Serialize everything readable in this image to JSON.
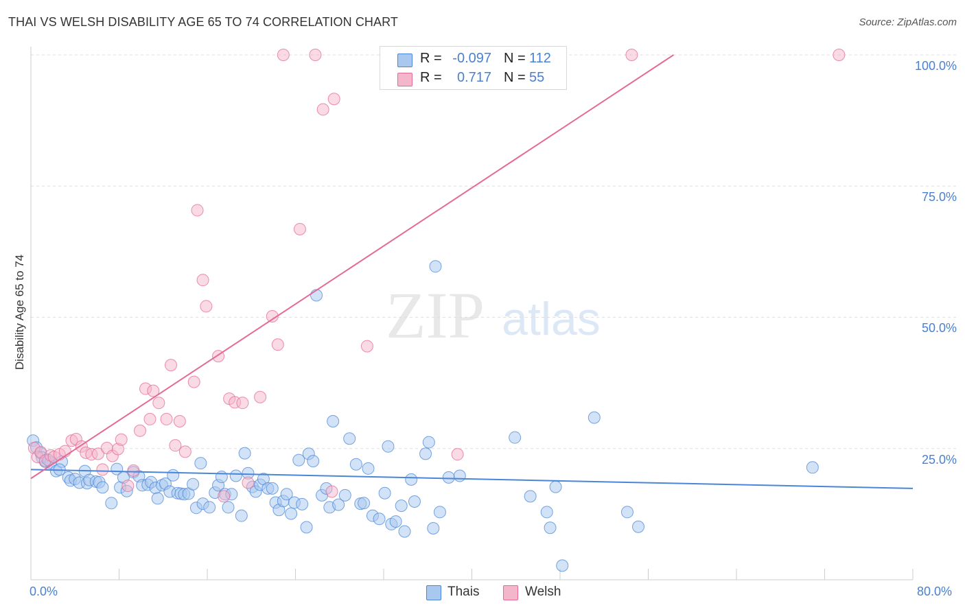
{
  "title": "THAI VS WELSH DISABILITY AGE 65 TO 74 CORRELATION CHART",
  "source": "Source: ZipAtlas.com",
  "watermark": {
    "zip": "ZIP",
    "atlas": "atlas"
  },
  "colors": {
    "thai": "#4a86d8",
    "thai_fill": "#a8c8f0",
    "welsh": "#e46a95",
    "welsh_fill": "#f4b6cb",
    "tick_text": "#4a80d0",
    "grid": "#dddddd"
  },
  "legend": {
    "thai": {
      "r_label": "R =",
      "r_value": "-0.097",
      "n_label": "N =",
      "n_value": "112"
    },
    "welsh": {
      "r_label": "R =",
      "r_value": "0.717",
      "n_label": "N =",
      "n_value": "55"
    }
  },
  "chart_data": {
    "type": "scatter",
    "title": "THAI VS WELSH DISABILITY AGE 65 TO 74 CORRELATION CHART",
    "xlabel": "",
    "ylabel": "Disability Age 65 to 74",
    "xlim": [
      0,
      80
    ],
    "ylim": [
      0,
      100
    ],
    "x_tick_labels": [
      "0.0%",
      "80.0%"
    ],
    "y_tick_labels": [
      "25.0%",
      "50.0%",
      "75.0%",
      "100.0%"
    ],
    "y_ticks": [
      25,
      50,
      75,
      100
    ],
    "grid": "horizontal dashed",
    "legend_position": "top-center",
    "series": [
      {
        "name": "Thais",
        "r": -0.097,
        "n": 112,
        "trend": {
          "x": [
            0,
            80
          ],
          "y": [
            21.0,
            17.4
          ]
        },
        "points": [
          [
            0.2,
            26.5
          ],
          [
            0.5,
            25.2
          ],
          [
            0.9,
            24.1
          ],
          [
            1.0,
            23.3
          ],
          [
            1.3,
            22.5
          ],
          [
            1.5,
            22.9
          ],
          [
            1.8,
            22.3
          ],
          [
            2.3,
            20.7
          ],
          [
            2.8,
            22.5
          ],
          [
            3.4,
            19.5
          ],
          [
            3.6,
            18.9
          ],
          [
            4.0,
            19.2
          ],
          [
            4.4,
            18.5
          ],
          [
            4.9,
            20.7
          ],
          [
            5.1,
            18.4
          ],
          [
            5.3,
            19.0
          ],
          [
            5.9,
            18.7
          ],
          [
            6.2,
            18.6
          ],
          [
            6.5,
            17.6
          ],
          [
            7.3,
            14.6
          ],
          [
            7.8,
            21.1
          ],
          [
            8.1,
            17.6
          ],
          [
            8.4,
            19.5
          ],
          [
            8.7,
            16.9
          ],
          [
            9.3,
            20.5
          ],
          [
            9.8,
            19.7
          ],
          [
            10.1,
            18.0
          ],
          [
            10.6,
            18.1
          ],
          [
            10.9,
            18.6
          ],
          [
            11.3,
            17.5
          ],
          [
            11.5,
            15.5
          ],
          [
            11.9,
            18.0
          ],
          [
            12.2,
            18.3
          ],
          [
            12.6,
            16.8
          ],
          [
            12.9,
            19.9
          ],
          [
            13.3,
            16.5
          ],
          [
            13.6,
            16.4
          ],
          [
            13.9,
            16.3
          ],
          [
            14.3,
            16.4
          ],
          [
            14.7,
            18.2
          ],
          [
            15.0,
            13.7
          ],
          [
            15.4,
            22.2
          ],
          [
            15.6,
            14.5
          ],
          [
            16.2,
            13.8
          ],
          [
            16.7,
            16.6
          ],
          [
            17.0,
            18.0
          ],
          [
            17.3,
            19.6
          ],
          [
            17.6,
            16.3
          ],
          [
            17.9,
            13.8
          ],
          [
            18.2,
            16.3
          ],
          [
            18.6,
            19.8
          ],
          [
            19.1,
            12.2
          ],
          [
            19.4,
            24.1
          ],
          [
            19.7,
            20.3
          ],
          [
            20.1,
            17.7
          ],
          [
            20.4,
            16.8
          ],
          [
            20.8,
            18.1
          ],
          [
            21.1,
            19.2
          ],
          [
            21.5,
            17.4
          ],
          [
            21.9,
            17.4
          ],
          [
            22.2,
            14.7
          ],
          [
            22.5,
            13.3
          ],
          [
            22.9,
            15.0
          ],
          [
            23.2,
            16.3
          ],
          [
            23.6,
            12.6
          ],
          [
            23.9,
            14.7
          ],
          [
            24.3,
            22.8
          ],
          [
            24.6,
            14.4
          ],
          [
            25.0,
            10.0
          ],
          [
            25.2,
            24.0
          ],
          [
            25.6,
            22.6
          ],
          [
            25.9,
            54.2
          ],
          [
            26.4,
            16.1
          ],
          [
            26.8,
            17.4
          ],
          [
            27.1,
            13.8
          ],
          [
            27.4,
            30.2
          ],
          [
            27.9,
            14.3
          ],
          [
            28.5,
            16.1
          ],
          [
            28.9,
            26.9
          ],
          [
            29.5,
            22.0
          ],
          [
            29.9,
            14.5
          ],
          [
            30.2,
            14.6
          ],
          [
            30.6,
            21.2
          ],
          [
            31.0,
            12.2
          ],
          [
            31.6,
            11.6
          ],
          [
            32.1,
            16.5
          ],
          [
            32.4,
            25.4
          ],
          [
            32.7,
            10.6
          ],
          [
            33.1,
            11.1
          ],
          [
            33.6,
            14.1
          ],
          [
            33.9,
            9.2
          ],
          [
            34.5,
            19.1
          ],
          [
            34.8,
            14.9
          ],
          [
            35.8,
            24.0
          ],
          [
            36.1,
            26.2
          ],
          [
            36.5,
            9.8
          ],
          [
            36.7,
            59.7
          ],
          [
            37.1,
            12.9
          ],
          [
            37.9,
            19.5
          ],
          [
            38.9,
            19.8
          ],
          [
            43.9,
            27.1
          ],
          [
            45.3,
            15.9
          ],
          [
            46.8,
            12.9
          ],
          [
            47.1,
            9.9
          ],
          [
            47.6,
            17.7
          ],
          [
            48.2,
            2.7
          ],
          [
            51.1,
            30.9
          ],
          [
            54.1,
            12.9
          ],
          [
            55.1,
            10.1
          ],
          [
            70.9,
            21.4
          ],
          [
            1.6,
            22.8
          ],
          [
            2.6,
            21.0
          ]
        ]
      },
      {
        "name": "Welsh",
        "r": 0.717,
        "n": 55,
        "trend": {
          "x": [
            0,
            58.3
          ],
          "y": [
            19.3,
            100
          ]
        },
        "points": [
          [
            0.3,
            25.1
          ],
          [
            0.6,
            23.4
          ],
          [
            0.9,
            24.3
          ],
          [
            1.3,
            22.7
          ],
          [
            1.8,
            23.7
          ],
          [
            2.1,
            23.4
          ],
          [
            2.6,
            23.9
          ],
          [
            3.1,
            24.5
          ],
          [
            3.7,
            26.5
          ],
          [
            4.1,
            26.8
          ],
          [
            4.6,
            25.4
          ],
          [
            5.0,
            24.2
          ],
          [
            5.5,
            23.9
          ],
          [
            6.1,
            24.0
          ],
          [
            6.5,
            21.0
          ],
          [
            6.9,
            25.1
          ],
          [
            7.4,
            23.6
          ],
          [
            7.9,
            24.9
          ],
          [
            8.2,
            26.7
          ],
          [
            8.8,
            17.9
          ],
          [
            9.3,
            20.8
          ],
          [
            9.9,
            28.4
          ],
          [
            10.4,
            36.4
          ],
          [
            10.8,
            30.6
          ],
          [
            11.1,
            36.0
          ],
          [
            11.6,
            33.7
          ],
          [
            12.3,
            30.6
          ],
          [
            12.7,
            40.9
          ],
          [
            13.1,
            25.6
          ],
          [
            13.5,
            30.2
          ],
          [
            14.0,
            24.4
          ],
          [
            14.8,
            37.7
          ],
          [
            15.1,
            70.4
          ],
          [
            15.6,
            57.1
          ],
          [
            15.9,
            52.1
          ],
          [
            17.0,
            42.6
          ],
          [
            17.5,
            15.9
          ],
          [
            18.0,
            34.5
          ],
          [
            18.5,
            33.8
          ],
          [
            19.2,
            33.7
          ],
          [
            19.7,
            18.5
          ],
          [
            20.8,
            34.8
          ],
          [
            21.9,
            50.2
          ],
          [
            22.4,
            44.8
          ],
          [
            22.9,
            100.0
          ],
          [
            24.4,
            66.8
          ],
          [
            25.8,
            100.0
          ],
          [
            26.5,
            89.6
          ],
          [
            27.3,
            16.8
          ],
          [
            27.5,
            91.6
          ],
          [
            30.5,
            44.5
          ],
          [
            32.2,
            100.0
          ],
          [
            38.7,
            23.9
          ],
          [
            54.5,
            100.0
          ],
          [
            73.3,
            100.0
          ]
        ]
      }
    ]
  }
}
